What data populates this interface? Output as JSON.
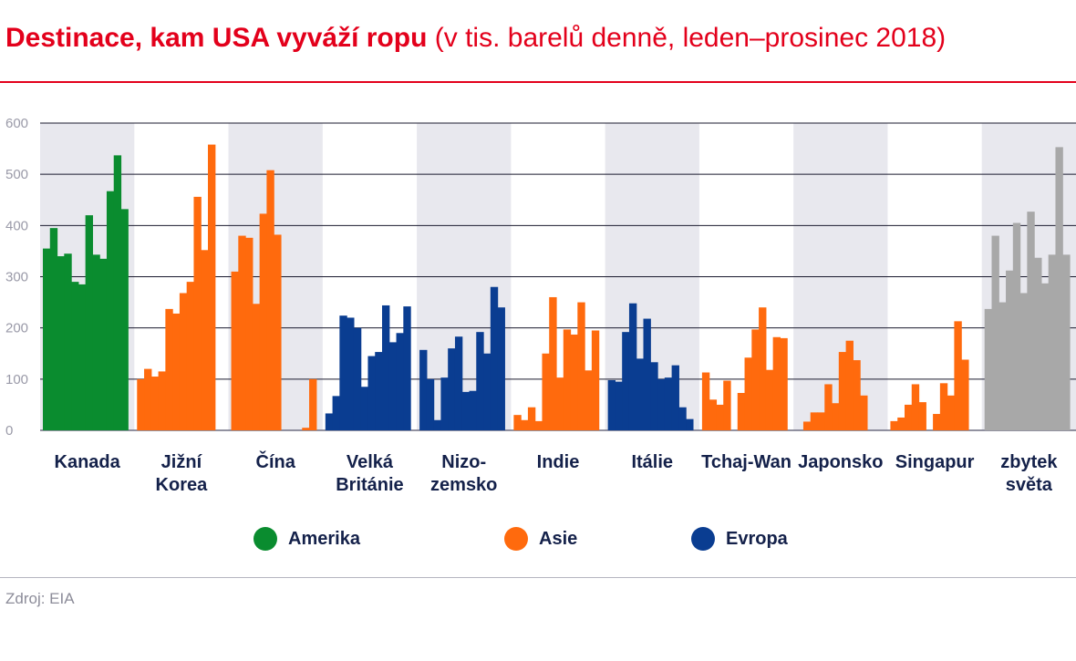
{
  "title": {
    "main": "Destinace, kam USA vyváží ropu",
    "sub": "(v tis. barelů denně, leden–prosinec 2018)"
  },
  "source": "Zdroj: EIA",
  "legend": [
    {
      "label": "Amerika",
      "color": "#0a8c2f"
    },
    {
      "label": "Asie",
      "color": "#ff6a0d"
    },
    {
      "label": "Evropa",
      "color": "#0a3d91"
    }
  ],
  "chart_data": {
    "type": "bar",
    "title": "Destinace, kam USA vyváží ropu (v tis. barelů denně, leden–prosinec 2018)",
    "xlabel": "",
    "ylabel": "",
    "ylim": [
      0,
      600
    ],
    "yticks": [
      "0",
      "100",
      "200",
      "300",
      "400",
      "500",
      "600"
    ],
    "grid": true,
    "legend_position": "bottom",
    "months_per_group": 12,
    "region_colors": {
      "Amerika": "#0a8c2f",
      "Asie": "#ff6a0d",
      "Evropa": "#0a3d91",
      "other": "#a8a8a8"
    },
    "groups": [
      {
        "label": [
          "Kanada"
        ],
        "region": "Amerika",
        "values": [
          355,
          395,
          340,
          345,
          290,
          285,
          420,
          343,
          335,
          467,
          537,
          432
        ]
      },
      {
        "label": [
          "Jižní",
          "Korea"
        ],
        "region": "Asie",
        "values": [
          100,
          120,
          105,
          115,
          237,
          228,
          268,
          290,
          456,
          352,
          558,
          0
        ]
      },
      {
        "label": [
          "Čína"
        ],
        "region": "Asie",
        "values": [
          310,
          380,
          376,
          247,
          423,
          508,
          382,
          0,
          0,
          0,
          5,
          100
        ]
      },
      {
        "label": [
          "Velká",
          "Británie"
        ],
        "region": "Evropa",
        "values": [
          33,
          67,
          224,
          220,
          200,
          85,
          145,
          153,
          244,
          172,
          190,
          242
        ]
      },
      {
        "label": [
          "Nizo-",
          "zemsko"
        ],
        "region": "Evropa",
        "values": [
          157,
          100,
          20,
          103,
          160,
          183,
          75,
          77,
          192,
          150,
          280,
          240
        ]
      },
      {
        "label": [
          "Indie"
        ],
        "region": "Asie",
        "values": [
          30,
          20,
          45,
          18,
          150,
          260,
          103,
          197,
          187,
          250,
          117,
          195
        ]
      },
      {
        "label": [
          "Itálie"
        ],
        "region": "Evropa",
        "values": [
          98,
          95,
          192,
          248,
          140,
          218,
          133,
          100,
          103,
          127,
          45,
          22
        ]
      },
      {
        "label": [
          "Tchaj-Wan"
        ],
        "region": "Asie",
        "values": [
          113,
          60,
          50,
          97,
          0,
          73,
          142,
          197,
          240,
          118,
          182,
          180
        ]
      },
      {
        "label": [
          "Japonsko"
        ],
        "region": "Asie",
        "values": [
          0,
          17,
          35,
          35,
          90,
          53,
          153,
          175,
          137,
          68,
          0,
          0
        ]
      },
      {
        "label": [
          "Singapur"
        ],
        "region": "Asie",
        "values": [
          18,
          25,
          50,
          90,
          55,
          0,
          32,
          92,
          68,
          213,
          138,
          0
        ]
      },
      {
        "label": [
          "zbytek",
          "světa"
        ],
        "region": "other",
        "values": [
          237,
          380,
          250,
          312,
          405,
          268,
          427,
          337,
          287,
          343,
          553,
          343
        ]
      }
    ]
  }
}
